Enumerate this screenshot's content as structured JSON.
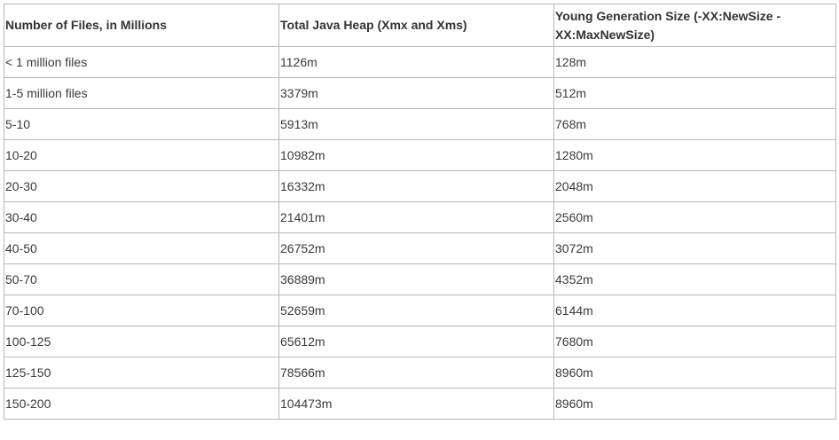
{
  "table": {
    "headers": [
      "Number of Files, in Millions",
      "Total Java Heap (Xmx and Xms)",
      "Young Generation Size (-XX:NewSize -XX:MaxNewSize)"
    ],
    "rows": [
      [
        "< 1 million files",
        "1126m",
        "128m"
      ],
      [
        "1-5 million files",
        "3379m",
        "512m"
      ],
      [
        "5-10",
        "5913m",
        "768m"
      ],
      [
        "10-20",
        "10982m",
        "1280m"
      ],
      [
        "20-30",
        "16332m",
        "2048m"
      ],
      [
        "30-40",
        "21401m",
        "2560m"
      ],
      [
        "40-50",
        "26752m",
        "3072m"
      ],
      [
        "50-70",
        "36889m",
        "4352m"
      ],
      [
        "70-100",
        "52659m",
        "6144m"
      ],
      [
        "100-125",
        "65612m",
        "7680m"
      ],
      [
        "125-150",
        "78566m",
        "8960m"
      ],
      [
        "150-200",
        "104473m",
        "8960m"
      ]
    ]
  }
}
